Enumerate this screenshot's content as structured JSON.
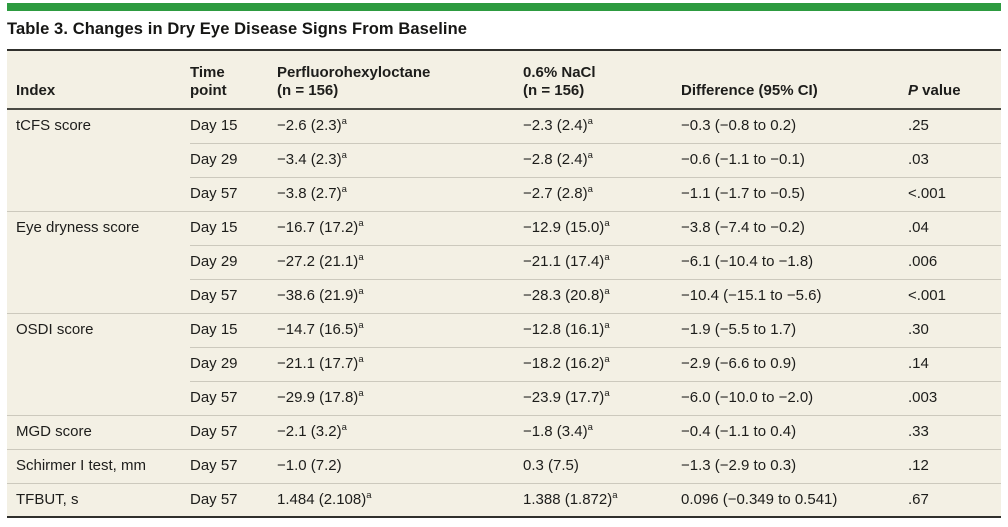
{
  "colors": {
    "accent_green": "#2d9b40",
    "table_background": "#f3f0e4",
    "heavy_rule": "#30302c",
    "row_separator": "#ccc9bd",
    "text": "#1d1d1b"
  },
  "page": {
    "title": "Table 3. Changes in Dry Eye Disease Signs From Baseline"
  },
  "table": {
    "header": {
      "index": {
        "l1": "Index",
        "l2": ""
      },
      "time": {
        "l1": "Time",
        "l2": "point"
      },
      "drug": {
        "l1": "Perfluorohexyloctane",
        "l2": "(n = 156)"
      },
      "saline": {
        "l1": "0.6% NaCl",
        "l2": "(n = 156)"
      },
      "diff": {
        "l1": "Difference (95% CI)",
        "l2": ""
      },
      "pvalue": {
        "italic": "P",
        "rest": " value"
      }
    },
    "rows": [
      {
        "index": "tCFS score",
        "time": "Day 15",
        "drug": "−2.6 (2.3)",
        "drug_sup": "a",
        "saline": "−2.3 (2.4)",
        "saline_sup": "a",
        "diff": "−0.3 (−0.8 to 0.2)",
        "p": ".25"
      },
      {
        "index": "",
        "time": "Day 29",
        "drug": "−3.4 (2.3)",
        "drug_sup": "a",
        "saline": "−2.8 (2.4)",
        "saline_sup": "a",
        "diff": "−0.6 (−1.1 to −0.1)",
        "p": ".03"
      },
      {
        "index": "",
        "time": "Day 57",
        "drug": "−3.8 (2.7)",
        "drug_sup": "a",
        "saline": "−2.7 (2.8)",
        "saline_sup": "a",
        "diff": "−1.1 (−1.7 to −0.5)",
        "p": "<.001"
      },
      {
        "index": "Eye dryness score",
        "time": "Day 15",
        "drug": "−16.7 (17.2)",
        "drug_sup": "a",
        "saline": "−12.9 (15.0)",
        "saline_sup": "a",
        "diff": "−3.8 (−7.4 to −0.2)",
        "p": ".04"
      },
      {
        "index": "",
        "time": "Day 29",
        "drug": "−27.2 (21.1)",
        "drug_sup": "a",
        "saline": "−21.1 (17.4)",
        "saline_sup": "a",
        "diff": "−6.1 (−10.4 to −1.8)",
        "p": ".006"
      },
      {
        "index": "",
        "time": "Day 57",
        "drug": "−38.6 (21.9)",
        "drug_sup": "a",
        "saline": "−28.3 (20.8)",
        "saline_sup": "a",
        "diff": "−10.4 (−15.1 to −5.6)",
        "p": "<.001"
      },
      {
        "index": "OSDI score",
        "time": "Day 15",
        "drug": "−14.7 (16.5)",
        "drug_sup": "a",
        "saline": "−12.8 (16.1)",
        "saline_sup": "a",
        "diff": "−1.9 (−5.5 to 1.7)",
        "p": ".30"
      },
      {
        "index": "",
        "time": "Day 29",
        "drug": "−21.1 (17.7)",
        "drug_sup": "a",
        "saline": "−18.2 (16.2)",
        "saline_sup": "a",
        "diff": "−2.9 (−6.6 to 0.9)",
        "p": ".14"
      },
      {
        "index": "",
        "time": "Day 57",
        "drug": "−29.9 (17.8)",
        "drug_sup": "a",
        "saline": "−23.9 (17.7)",
        "saline_sup": "a",
        "diff": "−6.0 (−10.0 to −2.0)",
        "p": ".003"
      },
      {
        "index": "MGD score",
        "time": "Day 57",
        "drug": "−2.1 (3.2)",
        "drug_sup": "a",
        "saline": "−1.8 (3.4)",
        "saline_sup": "a",
        "diff": "−0.4 (−1.1 to 0.4)",
        "p": ".33"
      },
      {
        "index": "Schirmer I test, mm",
        "time": "Day 57",
        "drug": "−1.0 (7.2)",
        "drug_sup": "",
        "saline": "0.3 (7.5)",
        "saline_sup": "",
        "diff": "−1.3 (−2.9 to 0.3)",
        "p": ".12"
      },
      {
        "index": "TFBUT, s",
        "time": "Day 57",
        "drug": "1.484 (2.108)",
        "drug_sup": "a",
        "saline": "1.388 (1.872)",
        "saline_sup": "a",
        "diff": "0.096 (−0.349 to 0.541)",
        "p": ".67"
      }
    ]
  }
}
